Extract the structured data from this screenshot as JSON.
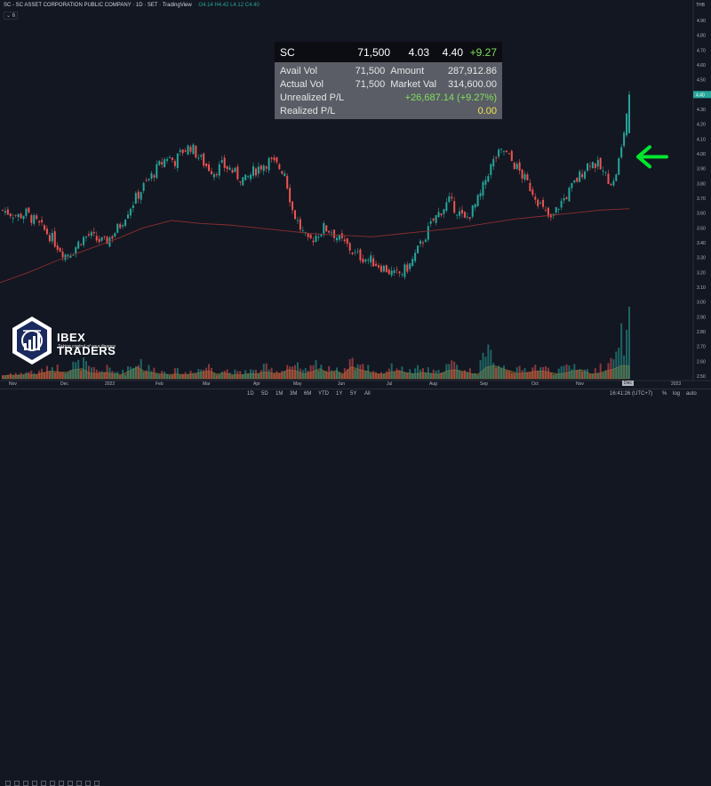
{
  "header": {
    "symbol_line": "SC - SC ASSET CORPORATION PUBLIC COMPANY · 1D · SET · TradingView",
    "ohlc": "O4.14 H4.42 L4.12 C4.40",
    "indicator": "⌄ 6",
    "currency": "THB"
  },
  "price_table": {
    "symbol": "SC",
    "top_values": [
      "71,500",
      "4.03",
      "4.40",
      "+9.27"
    ],
    "rows": [
      {
        "label1": "Avail Vol",
        "value1": "71,500",
        "label2": "Amount",
        "value2": "287,912.86"
      },
      {
        "label1": "Actual Vol",
        "value1": "71,500",
        "label2": "Market Val",
        "value2": "314,600.00"
      },
      {
        "label1": "Unrealized P/L",
        "value1": "",
        "label2": "",
        "value2": "+26,687.14 (+9.27%)"
      },
      {
        "label1": "Realized P/L",
        "value1": "",
        "label2": "",
        "value2": "0.00"
      }
    ]
  },
  "logo": {
    "name": "IBEX TRADERS",
    "tagline": "Taking control of your finance"
  },
  "colors": {
    "up": "#26a69a",
    "down": "#ef5350",
    "ma": "#8b2e2e",
    "arrow": "#00e62e",
    "vol_area": "#c8902a"
  },
  "chart_data": {
    "type": "candlestick",
    "y_ticks": [
      2.5,
      2.6,
      2.7,
      2.8,
      2.9,
      3.0,
      3.1,
      3.2,
      3.3,
      3.4,
      3.5,
      3.6,
      3.7,
      3.8,
      3.9,
      4.0,
      4.1,
      4.2,
      4.3,
      4.4,
      4.5,
      4.6,
      4.7,
      4.8,
      4.9
    ],
    "y_tick_labels": [
      "2.50",
      "2.60",
      "2.70",
      "2.80",
      "2.90",
      "3.00",
      "3.10",
      "3.20",
      "3.30",
      "3.40",
      "3.50",
      "3.60",
      "3.70",
      "3.80",
      "3.90",
      "4.00",
      "4.10",
      "4.20",
      "4.30",
      "4.40",
      "4.50",
      "4.60",
      "4.70",
      "4.80",
      "4.90"
    ],
    "ylim": [
      2.5,
      4.9
    ],
    "x_labels": [
      "Nov",
      "Dec",
      "2022",
      "Feb",
      "Mar",
      "Apr",
      "May",
      "Jun",
      "Jul",
      "Aug",
      "Sep",
      "Oct",
      "Nov",
      "Dec",
      "2023"
    ],
    "x_current": "Dec",
    "last_close": 4.4,
    "close_path": [
      3.62,
      3.6,
      3.58,
      3.6,
      3.55,
      3.5,
      3.45,
      3.38,
      3.32,
      3.35,
      3.42,
      3.45,
      3.42,
      3.4,
      3.45,
      3.52,
      3.62,
      3.7,
      3.78,
      3.85,
      3.92,
      3.98,
      3.95,
      4.02,
      4.05,
      3.98,
      3.92,
      3.88,
      3.92,
      3.9,
      3.85,
      3.82,
      3.88,
      3.92,
      3.95,
      3.92,
      3.88,
      3.62,
      3.5,
      3.4,
      3.45,
      3.5,
      3.48,
      3.42,
      3.38,
      3.32,
      3.3,
      3.28,
      3.25,
      3.22,
      3.18,
      3.2,
      3.25,
      3.35,
      3.45,
      3.55,
      3.62,
      3.68,
      3.62,
      3.55,
      3.62,
      3.72,
      3.88,
      3.98,
      4.02,
      3.95,
      3.88,
      3.8,
      3.72,
      3.62,
      3.55,
      3.65,
      3.72,
      3.8,
      3.88,
      3.95,
      3.92,
      3.85,
      3.8,
      4.03,
      4.4
    ],
    "ma_path": [
      3.13,
      3.2,
      3.28,
      3.35,
      3.42,
      3.5,
      3.55,
      3.53,
      3.52,
      3.5,
      3.48,
      3.46,
      3.45,
      3.44,
      3.46,
      3.48,
      3.5,
      3.53,
      3.56,
      3.58,
      3.6,
      3.62,
      3.63
    ],
    "volume_path": [
      0.1,
      0.14,
      0.12,
      0.18,
      0.15,
      0.22,
      0.3,
      0.26,
      0.24,
      0.34,
      0.38,
      0.22,
      0.2,
      0.24,
      0.18,
      0.16,
      0.3,
      0.44,
      0.26,
      0.22,
      0.18,
      0.16,
      0.18,
      0.14,
      0.2,
      0.24,
      0.3,
      0.18,
      0.22,
      0.16,
      0.14,
      0.2,
      0.18,
      0.26,
      0.22,
      0.2,
      0.34,
      0.3,
      0.18,
      0.26,
      0.38,
      0.22,
      0.3,
      0.18,
      0.46,
      0.34,
      0.28,
      0.2,
      0.16,
      0.26,
      0.3,
      0.22,
      0.18,
      0.24,
      0.2,
      0.16,
      0.3,
      0.34,
      0.28,
      0.2,
      0.18,
      0.44,
      0.62,
      0.38,
      0.3,
      0.2,
      0.22,
      0.28,
      0.3,
      0.24,
      0.18,
      0.22,
      0.3,
      0.34,
      0.2,
      0.18,
      0.3,
      0.36,
      0.58,
      0.95
    ]
  },
  "bottom": {
    "timeframes": [
      "1D",
      "5D",
      "1M",
      "3M",
      "6M",
      "YTD",
      "1Y",
      "5Y",
      "All"
    ],
    "clock": "16:41:26 (UTC+7)",
    "options": [
      "%",
      "log",
      "auto"
    ]
  }
}
